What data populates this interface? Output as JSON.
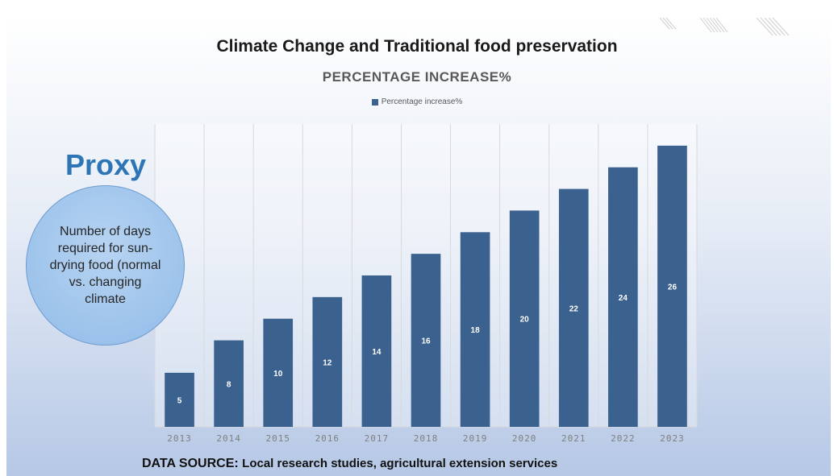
{
  "slide": {
    "title": "Climate Change and Traditional food preservation",
    "proxy_title": "Proxy",
    "proxy_text": "Number of days required for sun-drying food (normal vs. changing climate",
    "data_source_label": "DATA SOURCE:",
    "data_source_value": "Local research studies, agricultural extension services"
  },
  "chart_data": {
    "type": "bar",
    "title": "PERCENTAGE INCREASE%",
    "categories": [
      "2013",
      "2014",
      "2015",
      "2016",
      "2017",
      "2018",
      "2019",
      "2020",
      "2021",
      "2022",
      "2023"
    ],
    "series": [
      {
        "name": "Percentage increase%",
        "values": [
          5,
          8,
          10,
          12,
          14,
          16,
          18,
          20,
          22,
          24,
          26
        ]
      }
    ],
    "data_labels": true,
    "ylim": [
      0,
      28
    ],
    "grid": "vertical",
    "legend": "top",
    "colors": {
      "bar": "#3b618e",
      "label": "#ffffff",
      "tick": "#7f7f7f",
      "grid": "#d9d9d9"
    }
  }
}
